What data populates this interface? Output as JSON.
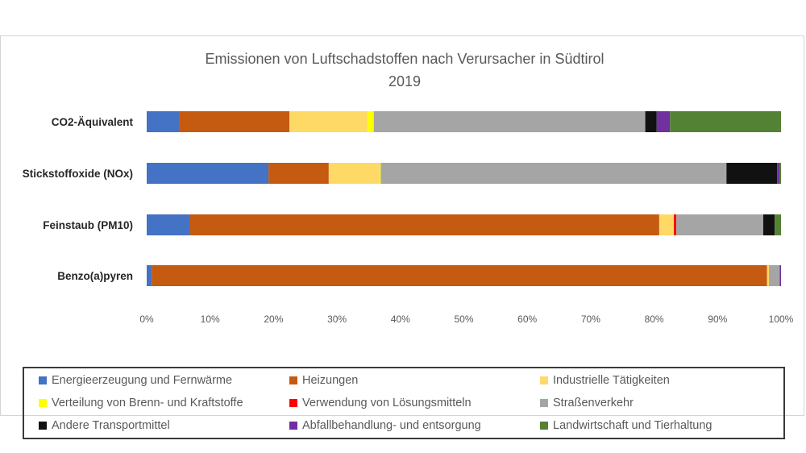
{
  "chart_data": {
    "type": "bar",
    "orientation": "horizontal",
    "stacked": "percent",
    "title": "Emissionen von Luftschadstoffen nach Verursacher in Südtirol",
    "subtitle": "2019",
    "categories": [
      "CO2-Äquivalent",
      "Stickstoffoxide (NOx)",
      "Feinstaub (PM10)",
      "Benzo(a)pyren"
    ],
    "xlim": [
      0,
      100
    ],
    "x_ticks": [
      "0%",
      "10%",
      "20%",
      "30%",
      "40%",
      "50%",
      "60%",
      "70%",
      "80%",
      "90%",
      "100%"
    ],
    "grid": false,
    "legend_position": "bottom",
    "series": [
      {
        "name": "Energieerzeugung und Fernwärme",
        "color": "#4472C4",
        "values": [
          5.2,
          19.2,
          6.8,
          0.8
        ]
      },
      {
        "name": "Heizungen",
        "color": "#C55A11",
        "values": [
          17.3,
          9.5,
          74.0,
          97.0
        ]
      },
      {
        "name": "Industrielle Tätigkeiten",
        "color": "#FFD966",
        "values": [
          12.3,
          8.1,
          2.3,
          0.3
        ]
      },
      {
        "name": "Verteilung von Brenn- und Kraftstoffe",
        "color": "#FFFF00",
        "values": [
          1.0,
          0.1,
          0.0,
          0.0
        ]
      },
      {
        "name": "Verwendung von Lösungsmitteln",
        "color": "#FF0000",
        "values": [
          0.0,
          0.0,
          0.4,
          0.0
        ]
      },
      {
        "name": "Straßenverkehr",
        "color": "#A5A5A5",
        "values": [
          42.8,
          54.5,
          13.7,
          1.7
        ]
      },
      {
        "name": "Andere Transportmittel",
        "color": "#111111",
        "values": [
          1.8,
          8.0,
          1.8,
          0.0
        ]
      },
      {
        "name": "Abfallbehandlung- und entsorgung",
        "color": "#7030A0",
        "values": [
          2.1,
          0.4,
          0.0,
          0.2
        ]
      },
      {
        "name": "Landwirtschaft und Tierhaltung",
        "color": "#548235",
        "values": [
          17.5,
          0.2,
          1.0,
          0.0
        ]
      }
    ]
  }
}
